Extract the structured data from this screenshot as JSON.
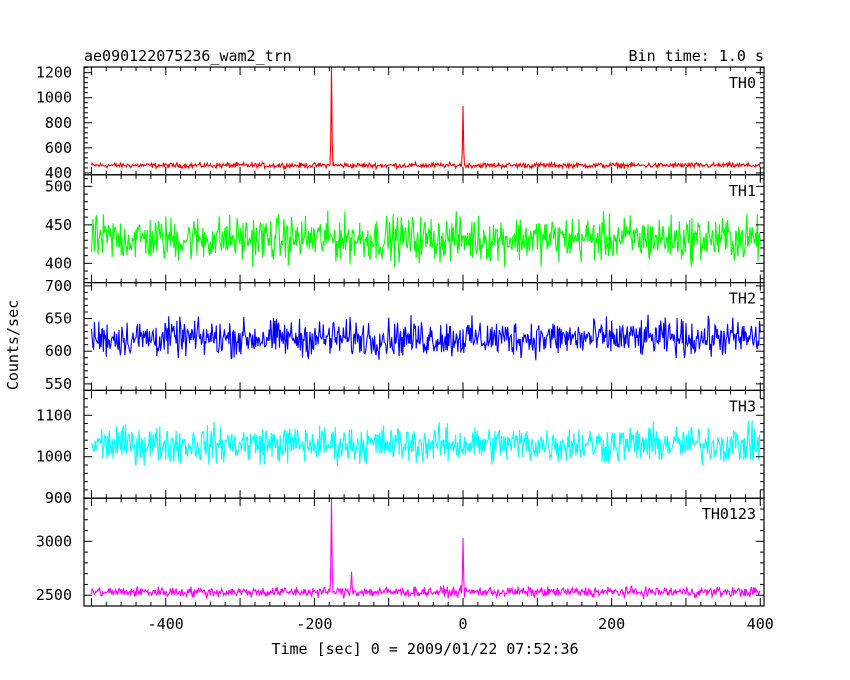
{
  "header": {
    "title": "ae090122075236_wam2_trn",
    "bin_time": "Bin time: 1.0 s"
  },
  "chart_data": {
    "type": "line",
    "xlabel": "Time [sec] 0 = 2009/01/22 07:52:36",
    "ylabel": "Counts/sec",
    "xlim": [
      -510,
      405
    ],
    "x_ticks": [
      -400,
      -200,
      0,
      200,
      400
    ],
    "bin_time_s": 1.0,
    "grid": false,
    "panels": [
      {
        "name": "TH0",
        "color": "#ff0000",
        "ylim": [
          385,
          1245
        ],
        "y_ticks": [
          400,
          600,
          800,
          1000,
          1200
        ],
        "baseline": 460,
        "noise": 18,
        "spikes": [
          {
            "x": -177,
            "y": 1245
          },
          {
            "x": 0,
            "y": 935
          }
        ]
      },
      {
        "name": "TH1",
        "color": "#00ff00",
        "ylim": [
          375,
          515
        ],
        "y_ticks": [
          400,
          450,
          500
        ],
        "baseline": 432,
        "noise": 25,
        "spikes": []
      },
      {
        "name": "TH2",
        "color": "#0000ff",
        "ylim": [
          540,
          705
        ],
        "y_ticks": [
          550,
          600,
          650,
          700
        ],
        "baseline": 620,
        "noise": 24,
        "spikes": []
      },
      {
        "name": "TH3",
        "color": "#00ffff",
        "ylim": [
          900,
          1160
        ],
        "y_ticks": [
          900,
          1000,
          1100
        ],
        "baseline": 1030,
        "noise": 38,
        "spikes": []
      },
      {
        "name": "TH0123",
        "color": "#ff00ff",
        "ylim": [
          2400,
          3400
        ],
        "y_ticks": [
          2500,
          3000
        ],
        "baseline": 2530,
        "noise": 40,
        "spikes": [
          {
            "x": -177,
            "y": 3400
          },
          {
            "x": 0,
            "y": 3030
          },
          {
            "x": -150,
            "y": 2720
          }
        ]
      }
    ]
  }
}
